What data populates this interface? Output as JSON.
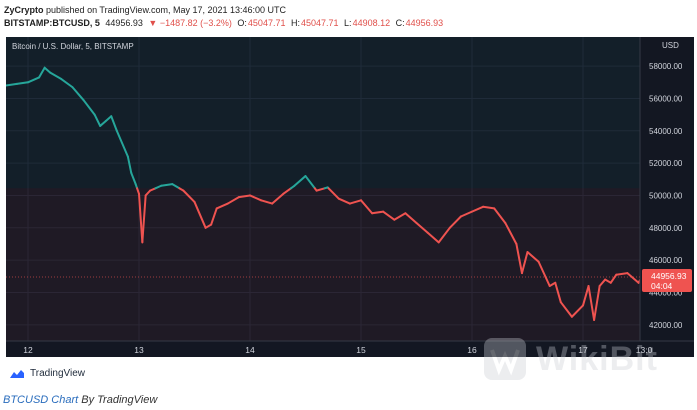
{
  "header": {
    "author": "ZyCrypto",
    "published_text": "published on TradingView.com, May 17, 2021 13:46:00 UTC",
    "symbol": "BITSTAMP:BTCUSD, 5",
    "last": "44956.93",
    "change": "▼ −1487.82 (−3.2%)",
    "o_label": "O:",
    "o_value": "45047.71",
    "h_label": "H:",
    "h_value": "45047.71",
    "l_label": "L:",
    "l_value": "44908.12",
    "c_label": "C:",
    "c_value": "44956.93"
  },
  "colors": {
    "background": "#131722",
    "up": "#26a69a",
    "down": "#ef5350",
    "axis_text": "#d1d4dc",
    "label_bg": "#ef5350"
  },
  "chart_data": {
    "type": "line",
    "title": "Bitcoin / U.S. Dollar, 5, BITSTAMP",
    "currency": "USD",
    "ylim": [
      41000,
      59800
    ],
    "y_ticks": [
      "42000.00",
      "44000.00",
      "46000.00",
      "48000.00",
      "50000.00",
      "52000.00",
      "54000.00",
      "56000.00",
      "58000.00"
    ],
    "x_ticks": [
      "12",
      "13",
      "14",
      "15",
      "16",
      "17",
      "13:0"
    ],
    "x_tick_days": [
      0,
      1,
      2,
      3,
      4,
      5,
      5.55
    ],
    "reference_price": 50444.75,
    "last_price_label": "44956.93",
    "countdown_label": "04:04",
    "grid": true,
    "series": [
      {
        "days": [
          -0.2,
          -0.1,
          0.0,
          0.1,
          0.15,
          0.2,
          0.3,
          0.4,
          0.5,
          0.6,
          0.65,
          0.7,
          0.75,
          0.8,
          0.9,
          0.93,
          0.97,
          1.0,
          1.03,
          1.06,
          1.1,
          1.2,
          1.3,
          1.4,
          1.5,
          1.6,
          1.65,
          1.7,
          1.8,
          1.9,
          2.0,
          2.1,
          2.2,
          2.3,
          2.4,
          2.5,
          2.6,
          2.7,
          2.8,
          2.9,
          3.0,
          3.1,
          3.2,
          3.3,
          3.4,
          3.5,
          3.6,
          3.7,
          3.8,
          3.9,
          4.0,
          4.1,
          4.2,
          4.3,
          4.4,
          4.45,
          4.5,
          4.6,
          4.7,
          4.75,
          4.8,
          4.9,
          5.0,
          5.05,
          5.1,
          5.15,
          5.2,
          5.25,
          5.3,
          5.4,
          5.5,
          5.55,
          5.6
        ],
        "values": [
          56800,
          56900,
          57000,
          57300,
          57900,
          57600,
          57200,
          56700,
          55900,
          55000,
          54300,
          54600,
          54900,
          54000,
          52400,
          51400,
          50700,
          50100,
          47100,
          50000,
          50300,
          50600,
          50700,
          50300,
          49600,
          48000,
          48200,
          49200,
          49500,
          49900,
          50000,
          49700,
          49500,
          50100,
          50600,
          51200,
          50300,
          50500,
          49800,
          49500,
          49700,
          48900,
          49000,
          48500,
          48900,
          48300,
          47700,
          47100,
          48000,
          48700,
          49000,
          49300,
          49200,
          48300,
          47000,
          45200,
          46500,
          45900,
          44400,
          44600,
          43400,
          42500,
          43200,
          44400,
          42300,
          44400,
          44800,
          44600,
          45100,
          45200,
          44600,
          45200,
          44956.93
        ]
      }
    ]
  },
  "logo": {
    "name": "TradingView"
  },
  "watermark": {
    "text": "WikiBit"
  },
  "caption": {
    "link_text": "BTCUSD Chart",
    "suffix": " By TradingView"
  }
}
